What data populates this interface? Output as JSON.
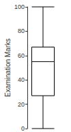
{
  "chart_data": {
    "type": "boxplot",
    "ylabel": "Examination Marks",
    "categories": [
      null
    ],
    "values": [
      [
        0,
        27,
        55,
        67,
        100
      ]
    ],
    "color": "#000000",
    "ylim": [
      0,
      100
    ],
    "yticks": [
      0,
      20,
      40,
      60,
      80,
      100
    ],
    "grid": false,
    "tick_labels": "y"
  }
}
